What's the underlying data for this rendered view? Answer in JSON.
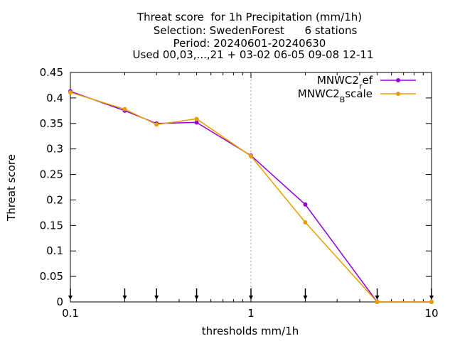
{
  "chart_data": {
    "type": "line",
    "title_lines": [
      "Threat score  for 1h Precipitation (mm/1h)",
      "Selection: SwedenForest      6 stations",
      "Period: 20240601-20240630",
      "Used 00,03,...,21 + 03-02 06-05 09-08 12-11"
    ],
    "xlabel": "thresholds mm/1h",
    "ylabel": "Threat score",
    "x_scale": "log",
    "xlim": [
      0.1,
      10
    ],
    "ylim": [
      0,
      0.45
    ],
    "x_ticks": [
      {
        "value": 0.1,
        "label": "0.1"
      },
      {
        "value": 1,
        "label": "1"
      },
      {
        "value": 10,
        "label": "10"
      }
    ],
    "y_ticks": [
      {
        "value": 0,
        "label": "0"
      },
      {
        "value": 0.05,
        "label": "0.05"
      },
      {
        "value": 0.1,
        "label": "0.1"
      },
      {
        "value": 0.15,
        "label": "0.15"
      },
      {
        "value": 0.2,
        "label": "0.2"
      },
      {
        "value": 0.25,
        "label": "0.25"
      },
      {
        "value": 0.3,
        "label": "0.3"
      },
      {
        "value": 0.35,
        "label": "0.35"
      },
      {
        "value": 0.4,
        "label": "0.4"
      },
      {
        "value": 0.45,
        "label": "0.45"
      }
    ],
    "grid_x_at": [
      1
    ],
    "threshold_arrows": [
      0.1,
      0.2,
      0.3,
      0.5,
      1,
      2,
      5,
      10
    ],
    "legend_position": "top-right",
    "series": [
      {
        "name_main": "MNWC2",
        "name_sub": "r",
        "name_rest": "ef",
        "color": "#9400d3",
        "x": [
          0.1,
          0.2,
          0.3,
          0.5,
          1,
          2,
          5,
          10
        ],
        "y": [
          0.413,
          0.375,
          0.35,
          0.352,
          0.287,
          0.191,
          0.0,
          0.0
        ]
      },
      {
        "name_main": "MNWC2",
        "name_sub": "B",
        "name_rest": "scale",
        "color": "#e69f00",
        "x": [
          0.1,
          0.2,
          0.3,
          0.5,
          1,
          2,
          5,
          10
        ],
        "y": [
          0.411,
          0.378,
          0.348,
          0.359,
          0.286,
          0.156,
          0.0,
          0.0
        ]
      }
    ]
  }
}
